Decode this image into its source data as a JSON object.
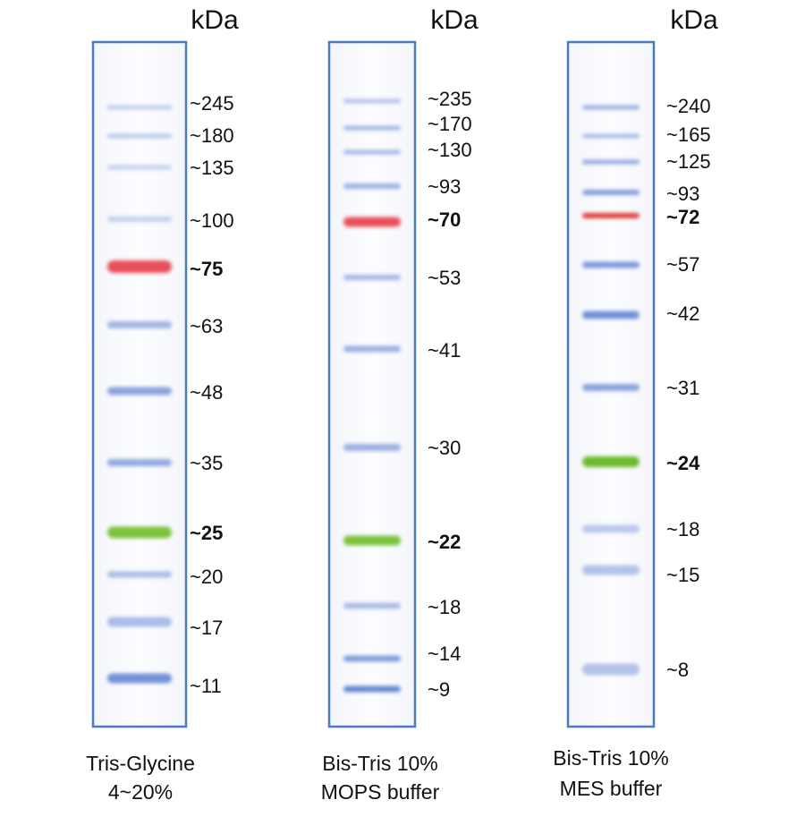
{
  "panels": [
    {
      "unit": "kDa",
      "bands": [
        {
          "label": "~245"
        },
        {
          "label": "~180"
        },
        {
          "label": "~135"
        },
        {
          "label": "~100"
        },
        {
          "label": "~75",
          "bold": true,
          "color": "#e8505a"
        },
        {
          "label": "~63"
        },
        {
          "label": "~48"
        },
        {
          "label": "~35"
        },
        {
          "label": "~25",
          "bold": true,
          "color": "#7cc23a"
        },
        {
          "label": "~20"
        },
        {
          "label": "~17"
        },
        {
          "label": "~11"
        }
      ],
      "caption": [
        "Tris-Glycine",
        "4~20%"
      ]
    },
    {
      "unit": "kDa",
      "bands": [
        {
          "label": "~235"
        },
        {
          "label": "~170"
        },
        {
          "label": "~130"
        },
        {
          "label": "~93"
        },
        {
          "label": "~70",
          "bold": true,
          "color": "#e8505a"
        },
        {
          "label": "~53"
        },
        {
          "label": "~41"
        },
        {
          "label": "~30"
        },
        {
          "label": "~22",
          "bold": true,
          "color": "#7cc23a"
        },
        {
          "label": "~18"
        },
        {
          "label": "~14"
        },
        {
          "label": "~9"
        }
      ],
      "caption": [
        "Bis-Tris 10%",
        "MOPS buffer"
      ]
    },
    {
      "unit": "kDa",
      "bands": [
        {
          "label": "~240"
        },
        {
          "label": "~165"
        },
        {
          "label": "~125"
        },
        {
          "label": "~93"
        },
        {
          "label": "~72",
          "bold": true,
          "color": "#e03a3a"
        },
        {
          "label": "~57"
        },
        {
          "label": "~42"
        },
        {
          "label": "~31"
        },
        {
          "label": "~24",
          "bold": true,
          "color": "#6cbb2a"
        },
        {
          "label": "~18"
        },
        {
          "label": "~15"
        },
        {
          "label": "~8"
        }
      ],
      "caption": [
        "Bis-Tris 10%",
        "MES buffer"
      ]
    }
  ]
}
